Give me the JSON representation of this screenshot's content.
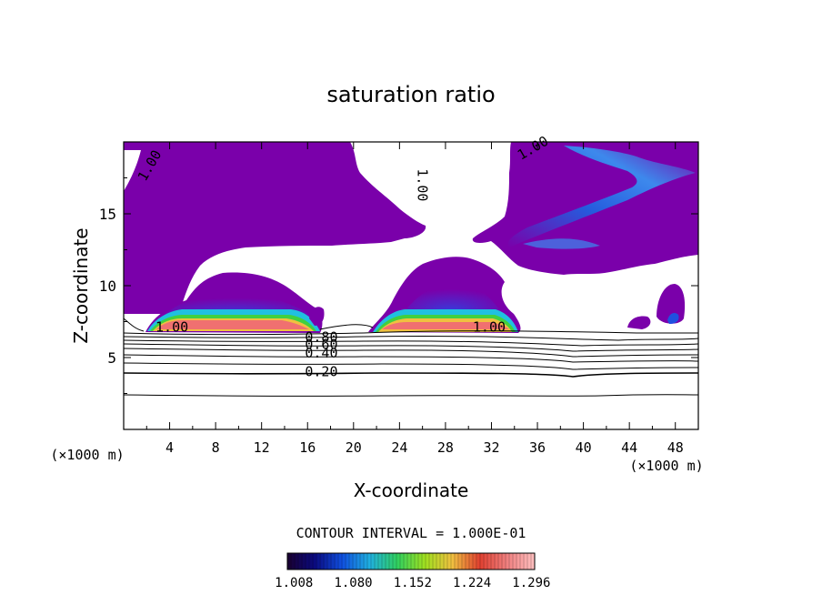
{
  "chart_data": {
    "type": "contour",
    "title": "saturation ratio",
    "xlabel": "X-coordinate",
    "ylabel": "Z-coordinate",
    "x_unit_label_left": "(×1000 m)",
    "x_unit_label_right": "(×1000 m)",
    "xlim": [
      0,
      50
    ],
    "ylim": [
      0,
      20
    ],
    "x_ticks": [
      4,
      8,
      12,
      16,
      20,
      24,
      28,
      32,
      36,
      40,
      44,
      48
    ],
    "y_ticks": [
      5,
      10,
      15
    ],
    "contour_interval_text": "CONTOUR INTERVAL = 1.000E-01",
    "contour_labels": [
      {
        "text": "1.00",
        "x": 2.6,
        "y": 18.2,
        "angle": -60
      },
      {
        "text": "1.00",
        "x": 25.6,
        "y": 17.0,
        "angle": 90
      },
      {
        "text": "1.00",
        "x": 35.8,
        "y": 19.3,
        "angle": -30
      },
      {
        "text": "1.00",
        "x": 4.2,
        "y": 6.8,
        "angle": 0
      },
      {
        "text": "1.00",
        "x": 31.8,
        "y": 6.8,
        "angle": 0
      },
      {
        "text": "0.80",
        "x": 17.2,
        "y": 6.1,
        "angle": 0
      },
      {
        "text": "0.60",
        "x": 17.2,
        "y": 5.6,
        "angle": 0
      },
      {
        "text": "0.40",
        "x": 17.2,
        "y": 5.0,
        "angle": 0
      },
      {
        "text": "0.20",
        "x": 17.2,
        "y": 3.7,
        "angle": 0
      }
    ],
    "contour_levels_below": [
      0.2,
      0.3,
      0.4,
      0.5,
      0.6,
      0.7,
      0.8,
      0.9
    ],
    "colorbar": {
      "tick_labels": [
        "1.008",
        "1.080",
        "1.152",
        "1.224",
        "1.296"
      ],
      "min": 1.0,
      "max": 1.3,
      "colors": [
        "#1a0030",
        "#0a0a80",
        "#1050e0",
        "#20b0e0",
        "#30d060",
        "#a0e020",
        "#f0c040",
        "#e04030",
        "#f08080",
        "#ffc0c0"
      ]
    },
    "fill_color_near_one": "#7a00aa"
  }
}
